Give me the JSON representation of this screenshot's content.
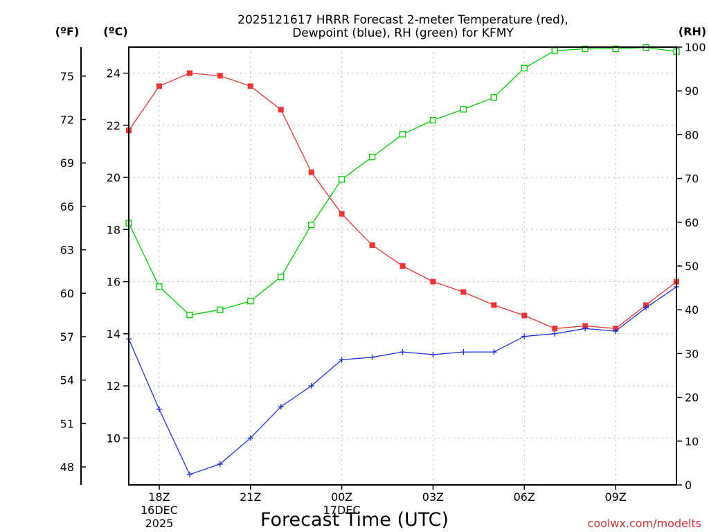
{
  "chart_data": {
    "type": "line",
    "title_lines": [
      "2025121617 HRRR Forecast 2-meter Temperature (red),",
      "Dewpoint (blue), RH (green) for KFMY"
    ],
    "xlabel": "Forecast Time (UTC)",
    "watermark": "coolwx.com/modelts",
    "x_hours": [
      17,
      18,
      19,
      20,
      21,
      22,
      23,
      24,
      25,
      26,
      27,
      28,
      29,
      30,
      31,
      32,
      33,
      34,
      35
    ],
    "x_range": [
      17,
      35
    ],
    "x_ticks": [
      {
        "hour": 18,
        "label": "18Z",
        "sub1": "16DEC",
        "sub2": "2025"
      },
      {
        "hour": 21,
        "label": "21Z"
      },
      {
        "hour": 24,
        "label": "00Z",
        "sub1": "17DEC"
      },
      {
        "hour": 27,
        "label": "03Z"
      },
      {
        "hour": 30,
        "label": "06Z"
      },
      {
        "hour": 33,
        "label": "09Z"
      }
    ],
    "axes": {
      "fahrenheit": {
        "unit_label": "(ºF)",
        "ticks": [
          48,
          51,
          54,
          57,
          60,
          63,
          66,
          69,
          72,
          75
        ]
      },
      "celsius": {
        "unit_label": "(ºC)",
        "range": [
          8.2,
          25.0
        ],
        "ticks": [
          10,
          12,
          14,
          16,
          18,
          20,
          22,
          24
        ]
      },
      "rh": {
        "unit_label": "(RH)",
        "range": [
          0,
          100
        ],
        "ticks": [
          0,
          10,
          20,
          30,
          40,
          50,
          60,
          70,
          80,
          90,
          100
        ]
      }
    },
    "series": [
      {
        "name": "Temperature",
        "axis": "celsius",
        "color": "#ee3333",
        "marker": "filled-square",
        "values": [
          21.8,
          23.5,
          24.0,
          23.9,
          23.5,
          22.6,
          20.2,
          18.6,
          17.4,
          16.6,
          16.0,
          15.6,
          15.1,
          14.7,
          14.2,
          14.3,
          14.2,
          15.1,
          16.0
        ]
      },
      {
        "name": "Dewpoint",
        "axis": "celsius",
        "color": "#2233dd",
        "marker": "plus",
        "values": [
          13.8,
          11.1,
          8.6,
          9.0,
          10.0,
          11.2,
          12.0,
          13.0,
          13.1,
          13.3,
          13.2,
          13.3,
          13.3,
          13.9,
          14.0,
          14.2,
          14.1,
          15.0,
          15.8
        ]
      },
      {
        "name": "RH",
        "axis": "rh",
        "color": "#00cc00",
        "marker": "open-square",
        "values": [
          59.8,
          45.3,
          38.8,
          40.0,
          42.0,
          47.5,
          59.4,
          69.8,
          74.9,
          80.1,
          83.3,
          85.8,
          88.5,
          95.2,
          99.2,
          99.6,
          99.6,
          99.9,
          99.0
        ]
      }
    ]
  }
}
